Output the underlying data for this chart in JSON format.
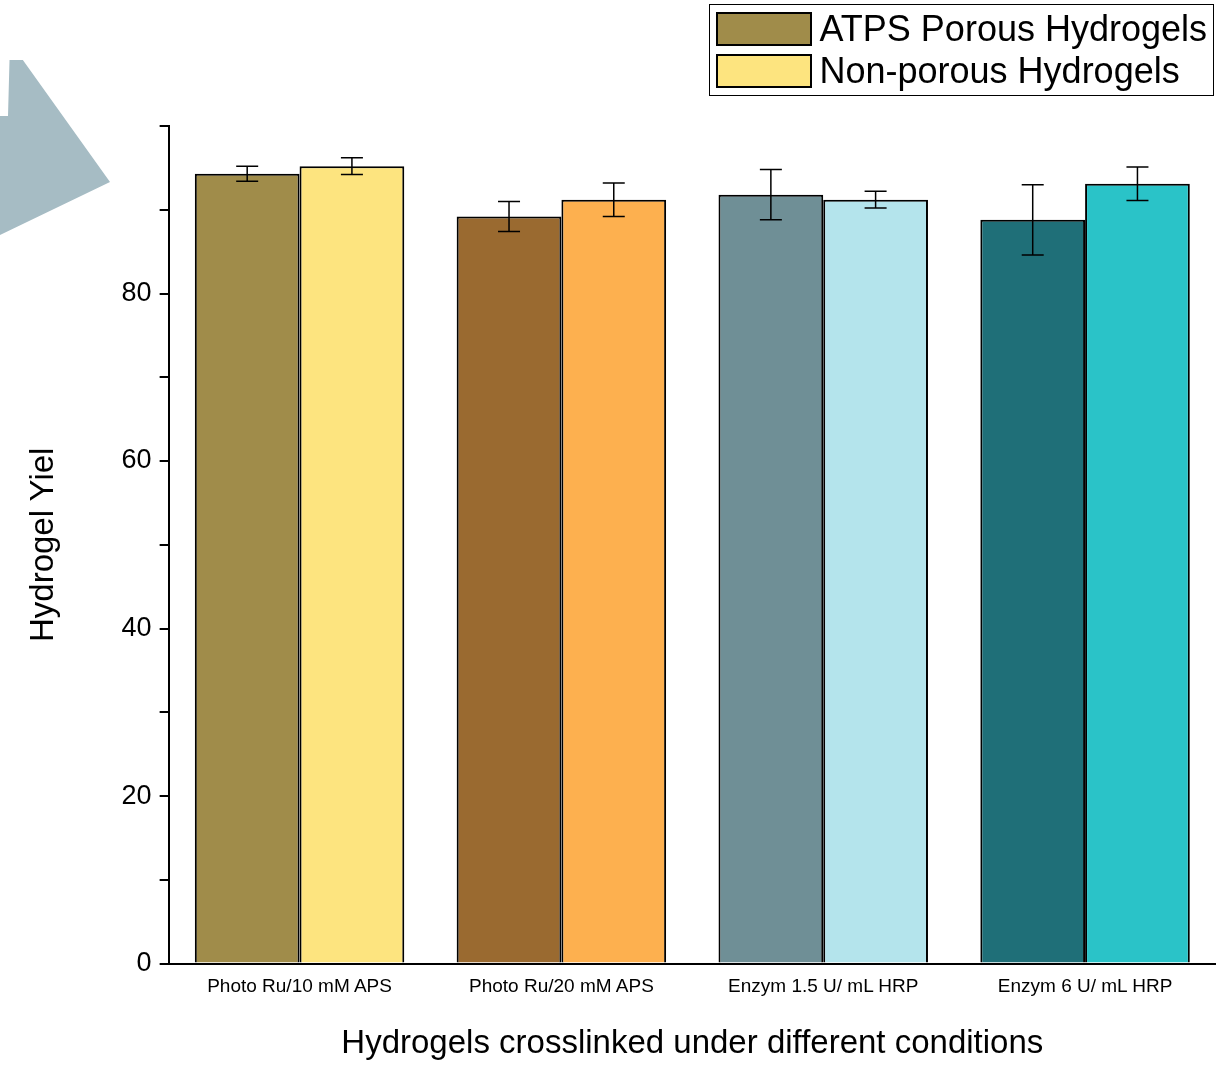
{
  "chart_data": {
    "type": "bar",
    "xlabel": "Hydrogels crosslinked under different conditions",
    "ylabel": "Hydrogel Yiel",
    "categories": [
      "Photo Ru/10 mM APS",
      "Photo Ru/20 mM APS",
      "Enzym 1.5 U/ mL HRP",
      "Enzym 6 U/ mL HRP"
    ],
    "series": [
      {
        "name": "ATPS Porous Hydrogels",
        "color": "#a08c4a",
        "colors": [
          "#a08c4a",
          "#9a6a30",
          "#6f8f96",
          "#1f6f78"
        ],
        "values": [
          94.3,
          89.2,
          91.8,
          88.8
        ],
        "errors": [
          0.9,
          1.8,
          3,
          4.2
        ]
      },
      {
        "name": "Non-porous Hydrogels",
        "color": "#fde47f",
        "colors": [
          "#fde47f",
          "#fdb04f",
          "#b4e4ec",
          "#2ac3c8"
        ],
        "values": [
          95.2,
          91.2,
          91.2,
          93.1
        ],
        "errors": [
          1,
          2,
          1,
          2
        ]
      }
    ],
    "ylim": [
      0,
      100
    ],
    "yticks": [
      0,
      {
        "value": 10,
        "label": null
      },
      20,
      {
        "value": 30,
        "label": null
      },
      40,
      {
        "value": 50,
        "label": null
      },
      60,
      {
        "value": 70,
        "label": null
      },
      80,
      {
        "value": 90,
        "label": null
      },
      {
        "value": 100,
        "label": null
      }
    ],
    "grid": false,
    "legend": "top right"
  }
}
